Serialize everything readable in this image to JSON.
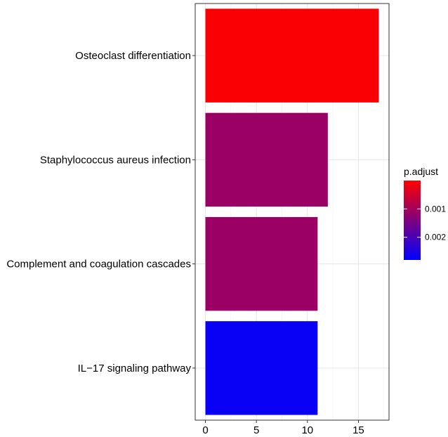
{
  "chart_data": {
    "type": "bar",
    "orientation": "horizontal",
    "categories": [
      "Osteoclast differentiation",
      "Staphylococcus aureus infection",
      "Complement and coagulation cascades",
      "IL−17 signaling pathway"
    ],
    "values": [
      17,
      12,
      11,
      11
    ],
    "color_values": [
      5e-05,
      0.0011,
      0.0011,
      0.0027
    ],
    "xlim": [
      -1,
      18
    ],
    "x_ticks": [
      0,
      5,
      10,
      15
    ],
    "x_tick_labels": [
      "0",
      "5",
      "10",
      "15"
    ],
    "grid": true,
    "legend": {
      "title": "p.adjust",
      "position": "right",
      "ticks": [
        0.001,
        0.002
      ],
      "tick_labels": [
        "0.001",
        "0.002"
      ],
      "range": [
        0.0,
        0.0028
      ],
      "low_color": "#ff0000",
      "high_color": "#0000ff"
    }
  }
}
